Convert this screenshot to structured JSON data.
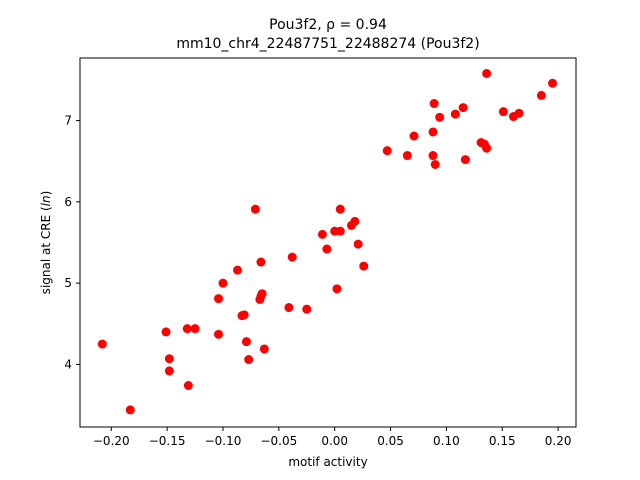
{
  "chart_data": {
    "type": "scatter",
    "title_line1": "Pou3f2, ρ = 0.94",
    "title_line2": "mm10_chr4_22487751_22488274 (Pou3f2)",
    "xlabel": "motif activity",
    "ylabel": "signal at CRE (ln)",
    "xlim": [
      -0.228,
      0.216
    ],
    "ylim": [
      3.23,
      7.77
    ],
    "x_ticks": [
      -0.2,
      -0.15,
      -0.1,
      -0.05,
      0.0,
      0.05,
      0.1,
      0.15,
      0.2
    ],
    "x_tick_labels": [
      "−0.20",
      "−0.15",
      "−0.10",
      "−0.05",
      "0.00",
      "0.05",
      "0.10",
      "0.15",
      "0.20"
    ],
    "y_ticks": [
      4,
      5,
      6,
      7
    ],
    "y_tick_labels": [
      "4",
      "5",
      "6",
      "7"
    ],
    "grid": false,
    "marker_color": "#ff0000",
    "points": [
      [
        -0.208,
        4.25
      ],
      [
        -0.183,
        3.44
      ],
      [
        -0.151,
        4.4
      ],
      [
        -0.148,
        4.07
      ],
      [
        -0.148,
        3.92
      ],
      [
        -0.132,
        4.44
      ],
      [
        -0.131,
        3.74
      ],
      [
        -0.125,
        4.44
      ],
      [
        -0.104,
        4.37
      ],
      [
        -0.104,
        4.81
      ],
      [
        -0.1,
        5.0
      ],
      [
        -0.087,
        5.16
      ],
      [
        -0.083,
        4.6
      ],
      [
        -0.081,
        4.61
      ],
      [
        -0.079,
        4.28
      ],
      [
        -0.077,
        4.06
      ],
      [
        -0.071,
        5.91
      ],
      [
        -0.067,
        4.8
      ],
      [
        -0.066,
        4.84
      ],
      [
        -0.066,
        5.26
      ],
      [
        -0.065,
        4.87
      ],
      [
        -0.063,
        4.19
      ],
      [
        -0.041,
        4.7
      ],
      [
        -0.038,
        5.32
      ],
      [
        -0.025,
        4.68
      ],
      [
        -0.011,
        5.6
      ],
      [
        -0.007,
        5.42
      ],
      [
        0.0,
        5.64
      ],
      [
        0.002,
        4.93
      ],
      [
        0.005,
        5.91
      ],
      [
        0.005,
        5.64
      ],
      [
        0.015,
        5.71
      ],
      [
        0.018,
        5.76
      ],
      [
        0.021,
        5.48
      ],
      [
        0.026,
        5.21
      ],
      [
        0.047,
        6.63
      ],
      [
        0.065,
        6.57
      ],
      [
        0.071,
        6.81
      ],
      [
        0.088,
        6.86
      ],
      [
        0.088,
        6.57
      ],
      [
        0.089,
        7.21
      ],
      [
        0.09,
        6.46
      ],
      [
        0.094,
        7.04
      ],
      [
        0.108,
        7.08
      ],
      [
        0.115,
        7.16
      ],
      [
        0.117,
        6.52
      ],
      [
        0.131,
        6.73
      ],
      [
        0.134,
        6.71
      ],
      [
        0.136,
        7.58
      ],
      [
        0.136,
        6.66
      ],
      [
        0.151,
        7.11
      ],
      [
        0.16,
        7.05
      ],
      [
        0.165,
        7.09
      ],
      [
        0.185,
        7.31
      ],
      [
        0.195,
        7.46
      ]
    ]
  }
}
